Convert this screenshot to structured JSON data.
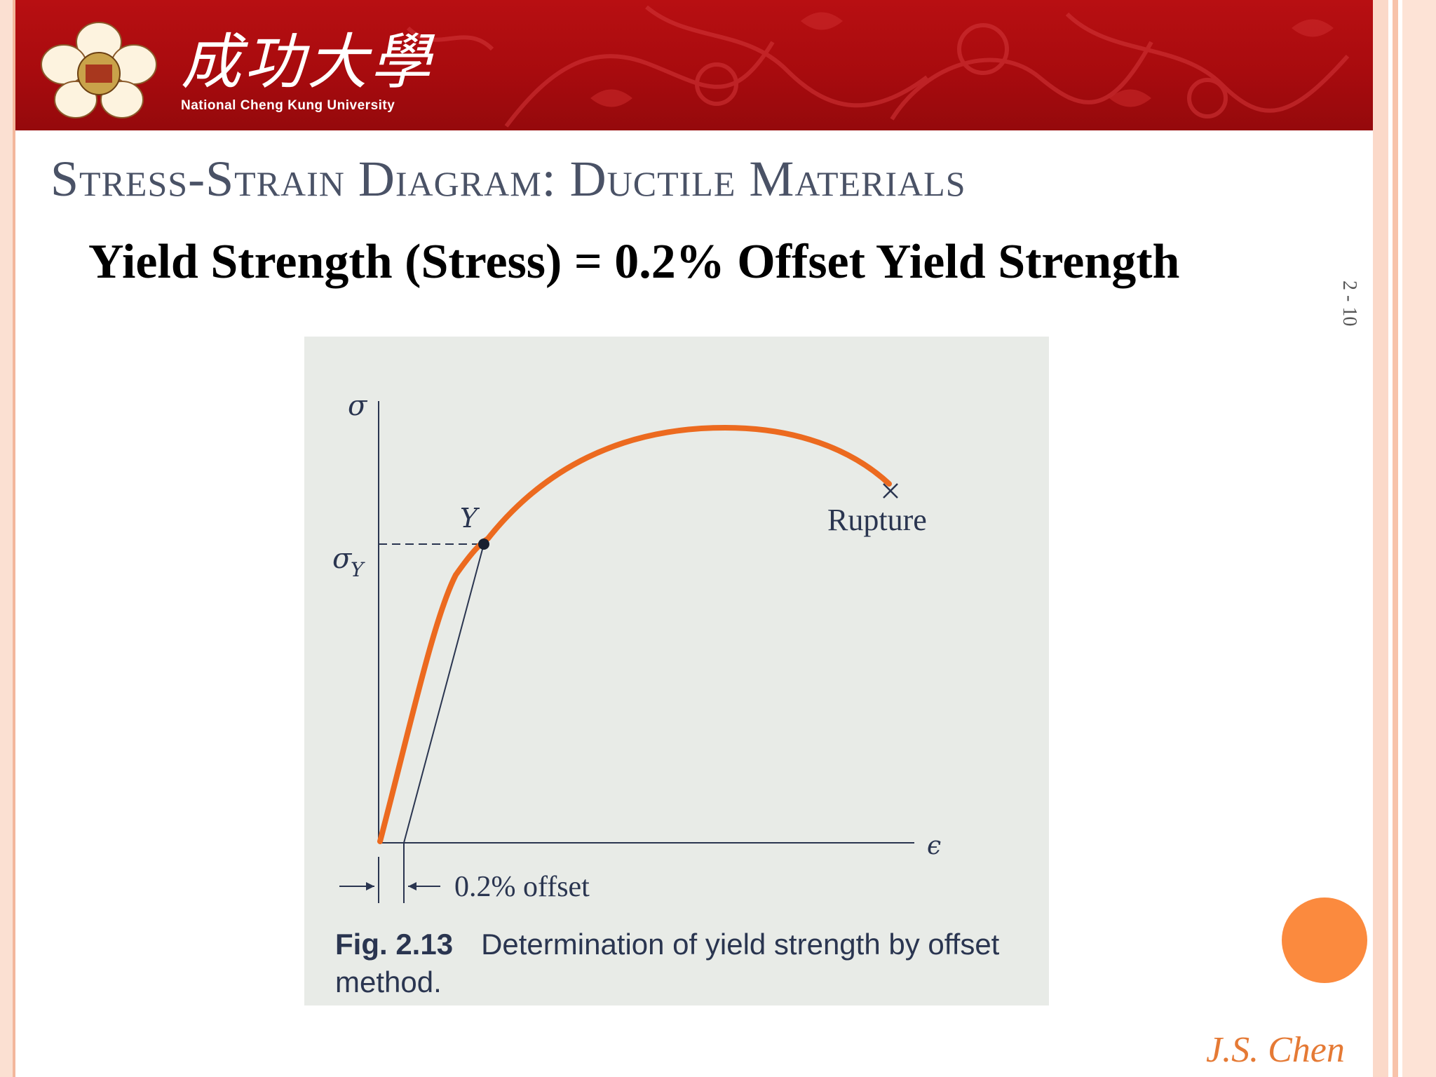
{
  "header": {
    "university_cn": "成功大學",
    "university_en": "National Cheng Kung University"
  },
  "slide": {
    "title": "Stress-Strain Diagram:  Ductile Materials",
    "subtitle": "Yield Strength (Stress) = 0.2% Offset Yield Strength",
    "page_number": "2 - 10",
    "author": "J.S. Chen"
  },
  "figure": {
    "axis_y_label": "σ",
    "axis_x_label": "ϵ",
    "yield_stress_label": "σ",
    "yield_stress_subscript": "Y",
    "yield_point_label": "Y",
    "rupture_label": "Rupture",
    "offset_label": "0.2% offset",
    "caption_number": "Fig. 2.13",
    "caption_text": "Determination of yield strength by offset method.",
    "colors": {
      "curve": "#ec6a1f",
      "axes": "#2a3550",
      "background": "#e8ebe7"
    }
  }
}
